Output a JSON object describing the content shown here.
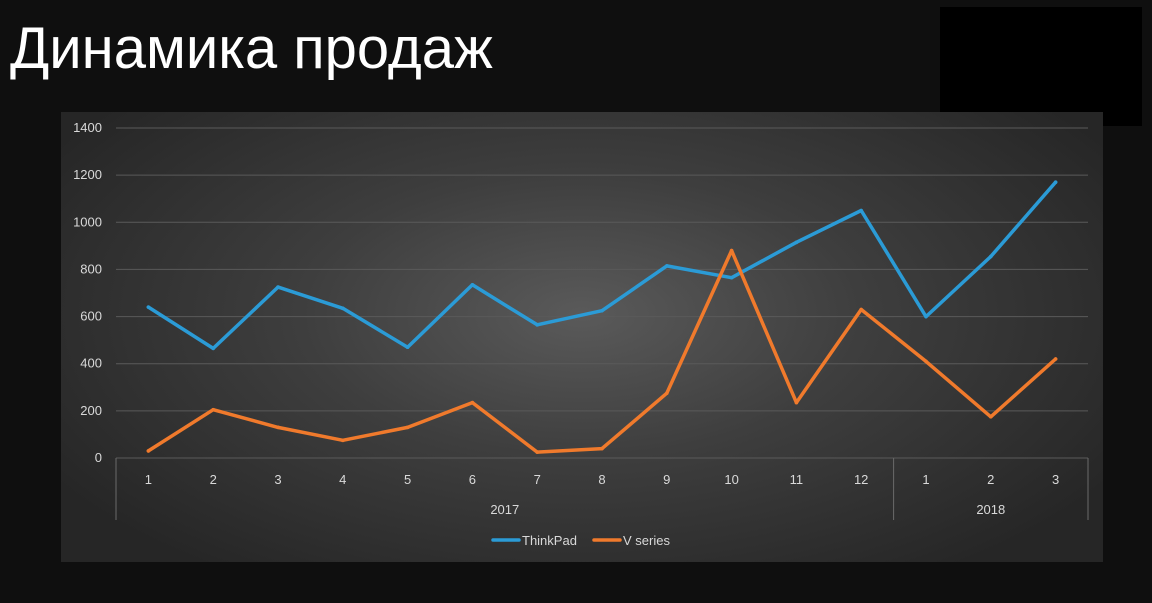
{
  "slide": {
    "title": "Динамика продаж"
  },
  "colors": {
    "background": "#0f0f0f",
    "thinkpad": "#2b9bd6",
    "v_series": "#f07a2c",
    "gridline": "#5a5a5a",
    "text": "#d9d9d9"
  },
  "chart_data": {
    "type": "line",
    "title": "",
    "xlabel": "",
    "ylabel": "",
    "categories": [
      "1",
      "2",
      "3",
      "4",
      "5",
      "6",
      "7",
      "8",
      "9",
      "10",
      "11",
      "12",
      "1",
      "2",
      "3"
    ],
    "category_groups": [
      {
        "label": "2017",
        "count": 12
      },
      {
        "label": "2018",
        "count": 3
      }
    ],
    "series": [
      {
        "name": "ThinkPad",
        "color": "#2b9bd6",
        "values": [
          640,
          465,
          725,
          635,
          470,
          735,
          565,
          625,
          815,
          765,
          915,
          1050,
          600,
          855,
          1170
        ]
      },
      {
        "name": "V series",
        "color": "#f07a2c",
        "values": [
          30,
          205,
          130,
          75,
          130,
          235,
          25,
          40,
          275,
          880,
          235,
          630,
          410,
          175,
          420
        ]
      }
    ],
    "ylim": [
      0,
      1400
    ],
    "yticks": [
      "0",
      "200",
      "400",
      "600",
      "800",
      "1000",
      "1200",
      "1400"
    ],
    "grid": true,
    "legend_position": "bottom"
  }
}
